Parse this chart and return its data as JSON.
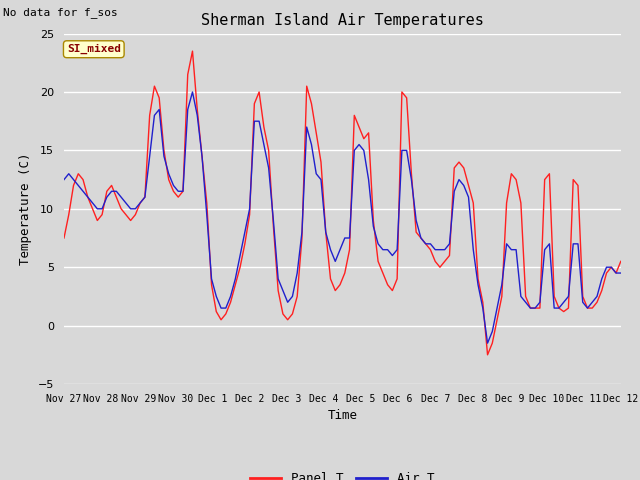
{
  "title": "Sherman Island Air Temperatures",
  "subtitle": "No data for f_sos",
  "xlabel": "Time",
  "ylabel": "Temperature (C)",
  "ylim": [
    -5,
    25
  ],
  "fig_bg_color": "#d8d8d8",
  "plot_bg_color": "#d8d8d8",
  "grid_color": "#ffffff",
  "panel_t_color": "#ff2020",
  "air_t_color": "#2020cc",
  "annotation_text": "SI_mixed",
  "annotation_bg": "#ffffcc",
  "annotation_border": "#aa8800",
  "annotation_text_color": "#880000",
  "x_tick_labels": [
    "Nov 27",
    "Nov 28",
    "Nov 29",
    "Nov 30",
    "Dec 1",
    "Dec 2",
    "Dec 3",
    "Dec 4",
    "Dec 5",
    "Dec 6",
    "Dec 7",
    "Dec 8",
    "Dec 9",
    "Dec 10",
    "Dec 11",
    "Dec 12"
  ],
  "panel_t": [
    7.5,
    9.5,
    12.0,
    13.0,
    12.5,
    11.0,
    10.0,
    9.0,
    9.5,
    11.5,
    12.0,
    11.0,
    10.0,
    9.5,
    9.0,
    9.5,
    10.5,
    11.0,
    18.0,
    20.5,
    19.5,
    15.0,
    12.5,
    11.5,
    11.0,
    11.5,
    21.5,
    23.5,
    18.5,
    14.5,
    10.5,
    3.5,
    1.2,
    0.5,
    1.0,
    2.0,
    3.5,
    5.0,
    7.0,
    9.5,
    19.0,
    20.0,
    17.0,
    15.0,
    8.5,
    3.0,
    1.0,
    0.5,
    1.0,
    2.5,
    7.5,
    20.5,
    19.0,
    16.5,
    14.0,
    8.0,
    4.0,
    3.0,
    3.5,
    4.5,
    6.5,
    18.0,
    17.0,
    16.0,
    16.5,
    9.0,
    5.5,
    4.5,
    3.5,
    3.0,
    4.0,
    20.0,
    19.5,
    13.0,
    8.0,
    7.5,
    7.0,
    6.5,
    5.5,
    5.0,
    5.5,
    6.0,
    13.5,
    14.0,
    13.5,
    12.0,
    10.5,
    4.0,
    2.0,
    -2.5,
    -1.5,
    0.5,
    2.5,
    10.5,
    13.0,
    12.5,
    10.5,
    2.5,
    1.5,
    1.5,
    1.5,
    12.5,
    13.0,
    2.5,
    1.5,
    1.2,
    1.5,
    12.5,
    12.0,
    2.5,
    1.5,
    1.5,
    2.0,
    3.0,
    4.5,
    5.0,
    4.5,
    5.5
  ],
  "air_t": [
    12.5,
    13.0,
    12.5,
    12.0,
    11.5,
    11.0,
    10.5,
    10.0,
    10.0,
    11.0,
    11.5,
    11.5,
    11.0,
    10.5,
    10.0,
    10.0,
    10.5,
    11.0,
    14.5,
    18.0,
    18.5,
    14.5,
    13.0,
    12.0,
    11.5,
    11.5,
    18.5,
    20.0,
    18.0,
    14.5,
    9.5,
    4.0,
    2.5,
    1.5,
    1.5,
    2.5,
    4.0,
    6.0,
    8.0,
    10.0,
    17.5,
    17.5,
    15.5,
    13.5,
    9.0,
    4.0,
    3.0,
    2.0,
    2.5,
    4.5,
    8.0,
    17.0,
    15.5,
    13.0,
    12.5,
    8.0,
    6.5,
    5.5,
    6.5,
    7.5,
    7.5,
    15.0,
    15.5,
    15.0,
    12.5,
    8.5,
    7.0,
    6.5,
    6.5,
    6.0,
    6.5,
    15.0,
    15.0,
    12.5,
    9.0,
    7.5,
    7.0,
    7.0,
    6.5,
    6.5,
    6.5,
    7.0,
    11.5,
    12.5,
    12.0,
    11.0,
    6.5,
    3.5,
    1.5,
    -1.5,
    -0.5,
    1.5,
    3.5,
    7.0,
    6.5,
    6.5,
    2.5,
    2.0,
    1.5,
    1.5,
    2.0,
    6.5,
    7.0,
    1.5,
    1.5,
    2.0,
    2.5,
    7.0,
    7.0,
    2.0,
    1.5,
    2.0,
    2.5,
    4.0,
    5.0,
    5.0,
    4.5,
    4.5
  ]
}
